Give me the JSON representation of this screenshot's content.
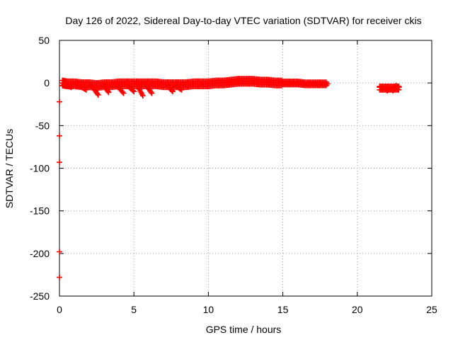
{
  "chart_data": {
    "type": "scatter",
    "title": "Day 126 of 2022, Sidereal Day-to-day VTEC variation (SDTVAR) for receiver ckis",
    "xlabel": "GPS time / hours",
    "ylabel": "SDTVAR / TECUs",
    "xlim": [
      0,
      25
    ],
    "ylim": [
      -250,
      50
    ],
    "xticks": [
      0,
      5,
      10,
      15,
      20,
      25
    ],
    "yticks": [
      -250,
      -200,
      -150,
      -100,
      -50,
      0,
      50
    ],
    "grid": true,
    "marker": "+",
    "series": [
      {
        "color": "#ff0000",
        "main_band": [
          [
            0.2,
            0
          ],
          [
            0.5,
            -1
          ],
          [
            1.0,
            -1
          ],
          [
            1.5,
            -2
          ],
          [
            2.0,
            -2
          ],
          [
            2.5,
            -3
          ],
          [
            3.0,
            -2
          ],
          [
            3.5,
            -2
          ],
          [
            4.0,
            -1
          ],
          [
            4.5,
            -1
          ],
          [
            5.0,
            -1
          ],
          [
            5.5,
            -1
          ],
          [
            6.0,
            -1
          ],
          [
            6.5,
            -1
          ],
          [
            7.0,
            -2
          ],
          [
            7.5,
            -2
          ],
          [
            8.0,
            -2
          ],
          [
            8.5,
            -2
          ],
          [
            9.0,
            -1
          ],
          [
            9.5,
            -1
          ],
          [
            10.0,
            -1
          ],
          [
            10.5,
            0
          ],
          [
            11.0,
            0
          ],
          [
            11.5,
            1
          ],
          [
            12.0,
            2
          ],
          [
            12.5,
            2
          ],
          [
            13.0,
            2
          ],
          [
            13.5,
            1
          ],
          [
            14.0,
            1
          ],
          [
            14.5,
            0
          ],
          [
            15.0,
            0
          ],
          [
            15.5,
            0
          ],
          [
            16.0,
            0
          ],
          [
            16.5,
            -1
          ],
          [
            17.0,
            -1
          ],
          [
            17.5,
            -1
          ],
          [
            18.0,
            -1
          ]
        ],
        "band_half_width": 3,
        "tails": [
          [
            [
              0.3,
              -2
            ],
            [
              0.8,
              -5
            ]
          ],
          [
            [
              1.3,
              -3
            ],
            [
              1.8,
              -8
            ]
          ],
          [
            [
              2.2,
              -4
            ],
            [
              2.6,
              -14
            ]
          ],
          [
            [
              3.0,
              -3
            ],
            [
              3.3,
              -11
            ]
          ],
          [
            [
              3.8,
              -2
            ],
            [
              4.3,
              -12
            ]
          ],
          [
            [
              4.5,
              -2
            ],
            [
              5.0,
              -10
            ]
          ],
          [
            [
              5.2,
              -2
            ],
            [
              5.6,
              -15
            ]
          ],
          [
            [
              5.8,
              -2
            ],
            [
              6.2,
              -12
            ]
          ],
          [
            [
              7.3,
              -3
            ],
            [
              7.6,
              -10
            ]
          ],
          [
            [
              7.8,
              -3
            ],
            [
              8.2,
              -8
            ]
          ]
        ],
        "late_cluster": [
          [
            21.5,
            -5
          ],
          [
            21.7,
            -6
          ],
          [
            21.9,
            -6
          ],
          [
            22.1,
            -7
          ],
          [
            22.3,
            -7
          ],
          [
            22.5,
            -6
          ],
          [
            22.7,
            -7
          ],
          [
            22.8,
            -5
          ],
          [
            22.0,
            -9
          ],
          [
            22.4,
            -9
          ],
          [
            22.6,
            -3
          ]
        ],
        "left_edge_points": [
          [
            0.0,
            -22
          ],
          [
            0.0,
            -62
          ],
          [
            0.0,
            -93
          ],
          [
            0.0,
            -198
          ],
          [
            0.0,
            -228
          ]
        ]
      }
    ]
  }
}
